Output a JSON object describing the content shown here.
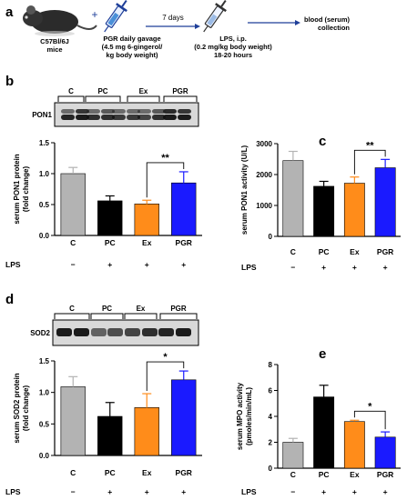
{
  "panel_labels": {
    "a": "a",
    "b": "b",
    "c": "c",
    "d": "d",
    "e": "e"
  },
  "scheme": {
    "mouse_label": [
      "C57Bl/6J",
      "mice"
    ],
    "plus": "+",
    "gavage_label": [
      "PGR daily gavage",
      "(4.5 mg 6-gingerol/",
      "kg body weight)"
    ],
    "arrow1_label": "7 days",
    "lps_label": [
      "LPS, i.p.",
      "(0.2 mg/kg body weight)",
      "18-20 hours"
    ],
    "collection_label": [
      "blood (serum)",
      "collection"
    ]
  },
  "blot_b": {
    "groups": [
      "C",
      "PC",
      "Ex",
      "PGR"
    ],
    "protein": "PON1"
  },
  "blot_d": {
    "groups": [
      "C",
      "PC",
      "Ex",
      "PGR"
    ],
    "protein": "SOD2"
  },
  "colors": {
    "C": "#b3b3b3",
    "PC": "#000000",
    "Ex": "#ff8c1a",
    "PGR": "#1a1aff",
    "arrow": "#1f3f99"
  },
  "lps_row": {
    "label": "LPS",
    "signs": [
      "−",
      "+",
      "+",
      "+"
    ]
  },
  "chart_data": [
    {
      "id": "b",
      "type": "bar",
      "categories": [
        "C",
        "PC",
        "Ex",
        "PGR"
      ],
      "values": [
        1.0,
        0.56,
        0.51,
        0.85
      ],
      "errors": [
        0.1,
        0.08,
        0.06,
        0.18
      ],
      "ylabel": [
        "serum PON1 protein",
        "(fold change)"
      ],
      "ylim": [
        0,
        1.5
      ],
      "yticks": [
        "0.0",
        "0.5",
        "1.0",
        "1.5"
      ],
      "significance": {
        "between": [
          "Ex",
          "PGR"
        ],
        "label": "**"
      }
    },
    {
      "id": "c",
      "type": "bar",
      "categories": [
        "C",
        "PC",
        "Ex",
        "PGR"
      ],
      "values": [
        2450,
        1620,
        1720,
        2220
      ],
      "errors": [
        300,
        160,
        200,
        270
      ],
      "ylabel": [
        "serum PON1 activity (U/L)"
      ],
      "ylim": [
        0,
        3000
      ],
      "yticks": [
        "0",
        "1000",
        "2000",
        "3000"
      ],
      "significance": {
        "between": [
          "Ex",
          "PGR"
        ],
        "label": "**"
      }
    },
    {
      "id": "d",
      "type": "bar",
      "categories": [
        "C",
        "PC",
        "Ex",
        "PGR"
      ],
      "values": [
        1.09,
        0.62,
        0.76,
        1.2
      ],
      "errors": [
        0.16,
        0.22,
        0.22,
        0.14
      ],
      "ylabel": [
        "serum SOD2 protein",
        "(fold change)"
      ],
      "ylim": [
        0,
        1.5
      ],
      "yticks": [
        "0.0",
        "0.5",
        "1.0",
        "1.5"
      ],
      "significance": {
        "between": [
          "Ex",
          "PGR"
        ],
        "label": "*"
      }
    },
    {
      "id": "e",
      "type": "bar",
      "categories": [
        "C",
        "PC",
        "Ex",
        "PGR"
      ],
      "values": [
        2.0,
        5.5,
        3.6,
        2.4
      ],
      "errors": [
        0.3,
        0.9,
        0.1,
        0.4
      ],
      "ylabel": [
        "serum MPO activity",
        "(pmoles/min/mL)"
      ],
      "ylim": [
        0,
        8
      ],
      "yticks": [
        "0",
        "2",
        "4",
        "6",
        "8"
      ],
      "significance": {
        "between": [
          "Ex",
          "PGR"
        ],
        "label": "*"
      }
    }
  ]
}
